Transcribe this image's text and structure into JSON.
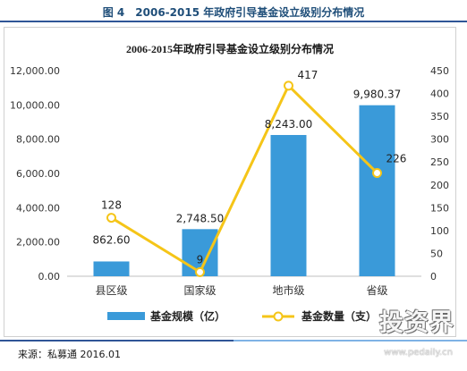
{
  "figure_title": "图 4　2006-2015 年政府引导基金设立级别分布情况",
  "source": "来源：私募通 2016.01",
  "watermark": {
    "text": "投资界",
    "url": "www.pedaily.cn"
  },
  "colors": {
    "bar": "#3a9ad9",
    "line": "#f5c518",
    "marker_fill": "#ffffff",
    "title": "#1f4e79"
  },
  "chart_data": {
    "type": "bar",
    "title": "2006-2015年政府引导基金设立级别分布情况",
    "categories": [
      "县区级",
      "国家级",
      "地市级",
      "省级"
    ],
    "series": [
      {
        "name": "基金规模（亿）",
        "type": "bar",
        "axis": "left",
        "values": [
          862.6,
          2748.5,
          8243.0,
          9980.37
        ],
        "labels": [
          "862.60",
          "2,748.50",
          "8,243.00",
          "9,980.37"
        ]
      },
      {
        "name": "基金数量（支）",
        "type": "line",
        "axis": "right",
        "values": [
          128,
          9,
          417,
          226
        ],
        "labels": [
          "128",
          "9",
          "417",
          "226"
        ]
      }
    ],
    "y_left": {
      "min": 0,
      "max": 12000,
      "step": 2000,
      "ticks": [
        "0.00",
        "2,000.00",
        "4,000.00",
        "6,000.00",
        "8,000.00",
        "10,000.00",
        "12,000.00"
      ]
    },
    "y_right": {
      "min": 0,
      "max": 450,
      "step": 50,
      "ticks": [
        "0",
        "50",
        "100",
        "150",
        "200",
        "250",
        "300",
        "350",
        "400",
        "450"
      ]
    },
    "grid": false,
    "legend_position": "bottom"
  }
}
